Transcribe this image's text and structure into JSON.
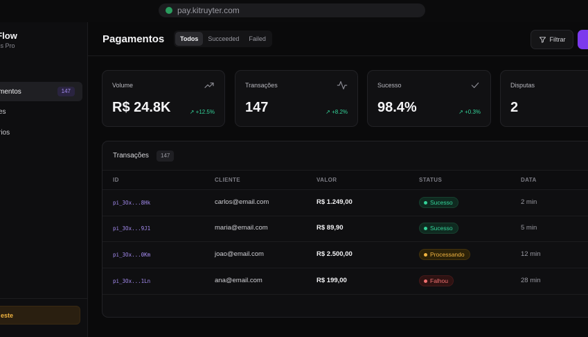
{
  "browser": {
    "url": "pay.kitruyter.com"
  },
  "sidebar": {
    "brand": "yFlow",
    "brand_sub": "ness Pro",
    "items": [
      {
        "label": "mentos",
        "badge": "147",
        "active": true
      },
      {
        "label": "es",
        "active": false
      },
      {
        "label": "rios",
        "active": false
      }
    ],
    "trial_label": "este"
  },
  "header": {
    "title": "Pagamentos",
    "tabs": [
      {
        "label": "Todos",
        "active": true
      },
      {
        "label": "Succeeded",
        "active": false
      },
      {
        "label": "Failed",
        "active": false
      }
    ],
    "filter_label": "Filtrar"
  },
  "stats": [
    {
      "label": "Volume",
      "value": "R$ 24.8K",
      "change": "+12.5%",
      "icon": "trending-up-icon"
    },
    {
      "label": "Transações",
      "value": "147",
      "change": "+8.2%",
      "icon": "activity-icon"
    },
    {
      "label": "Sucesso",
      "value": "98.4%",
      "change": "+0.3%",
      "icon": "check-icon"
    },
    {
      "label": "Disputas",
      "value": "2",
      "change": "",
      "icon": ""
    }
  ],
  "table": {
    "title": "Transações",
    "count": "147",
    "columns": [
      "ID",
      "CLIENTE",
      "VALOR",
      "STATUS",
      "DATA"
    ],
    "rows": [
      {
        "id": "pi_3Ox...8Hk",
        "client": "carlos@email.com",
        "value": "R$ 1.249,00",
        "status": "Sucesso",
        "status_kind": "success",
        "date": "2 min"
      },
      {
        "id": "pi_3Ox...9J1",
        "client": "maria@email.com",
        "value": "R$ 89,90",
        "status": "Sucesso",
        "status_kind": "success",
        "date": "5 min"
      },
      {
        "id": "pi_3Ox...0Km",
        "client": "joao@email.com",
        "value": "R$ 2.500,00",
        "status": "Processando",
        "status_kind": "processing",
        "date": "12 min"
      },
      {
        "id": "pi_3Ox...1Ln",
        "client": "ana@email.com",
        "value": "R$ 199,00",
        "status": "Falhou",
        "status_kind": "failed",
        "date": "28 min"
      }
    ]
  },
  "colors": {
    "accent": "#7c3aed",
    "success": "#34d399",
    "warning": "#f0b340",
    "danger": "#f07070"
  }
}
